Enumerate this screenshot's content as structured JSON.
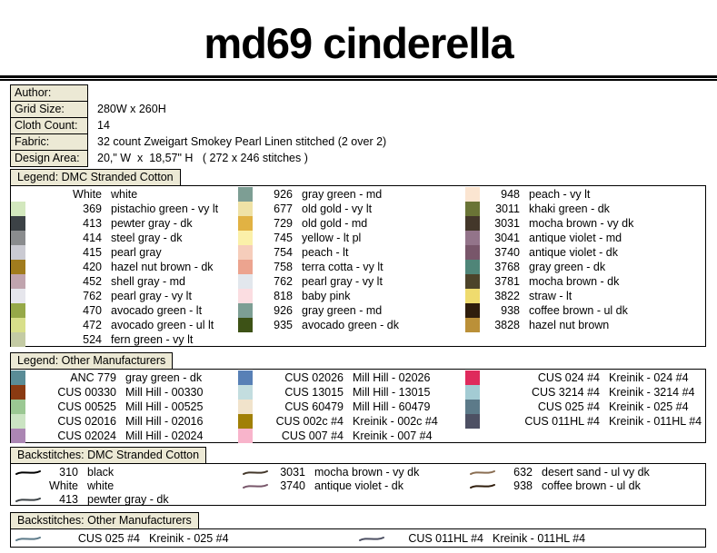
{
  "title": "md69 cinderella",
  "palette": {
    "header_box_bg": "#ECE9D5",
    "border": "#000000",
    "rule": "#000000",
    "page_bg": "#FFFFFF"
  },
  "meta": {
    "rows": [
      {
        "label": "Author:",
        "value": ""
      },
      {
        "label": "Grid Size:",
        "value": "280W x 260H"
      },
      {
        "label": "Cloth Count:",
        "value": "14"
      },
      {
        "label": "Fabric:",
        "value": "32 count Zweigart Smokey Pearl Linen stitched (2 over 2)"
      },
      {
        "label": "Design Area:",
        "value": "20,\" W  x  18,57\" H   ( 272 x 246 stitches )"
      }
    ]
  },
  "sections": [
    {
      "id": "legend_dmc",
      "header": "Legend: DMC Stranded Cotton",
      "type": "swatch",
      "columns": [
        [
          {
            "code": "White",
            "name": "white",
            "color": "#FFFFFF"
          },
          {
            "code": "369",
            "name": "pistachio green - vy lt",
            "color": "#D3E8BE"
          },
          {
            "code": "413",
            "name": "pewter gray - dk",
            "color": "#3C4246"
          },
          {
            "code": "414",
            "name": "steel gray - dk",
            "color": "#8A8C8E"
          },
          {
            "code": "415",
            "name": "pearl gray",
            "color": "#CACAD2"
          },
          {
            "code": "420",
            "name": "hazel nut brown - dk",
            "color": "#A17C1E"
          },
          {
            "code": "452",
            "name": "shell gray - md",
            "color": "#C0A4AE"
          },
          {
            "code": "762",
            "name": "pearl gray - vy lt",
            "color": "#E6E6EC"
          },
          {
            "code": "470",
            "name": "avocado green - lt",
            "color": "#96A948"
          },
          {
            "code": "472",
            "name": "avocado green - ul lt",
            "color": "#D8DF8A"
          },
          {
            "code": "524",
            "name": "fern green - vy lt",
            "color": "#C4CBA4"
          }
        ],
        [
          {
            "code": "926",
            "name": "gray green - md",
            "color": "#7D9E94"
          },
          {
            "code": "677",
            "name": "old gold - vy lt",
            "color": "#EFE2A6"
          },
          {
            "code": "729",
            "name": "old gold - md",
            "color": "#E1B243"
          },
          {
            "code": "745",
            "name": "yellow - lt pl",
            "color": "#FBF0A9"
          },
          {
            "code": "754",
            "name": "peach - lt",
            "color": "#F6CDBB"
          },
          {
            "code": "758",
            "name": "terra cotta - vy lt",
            "color": "#ECA48F"
          },
          {
            "code": "762",
            "name": "pearl gray - vy lt",
            "color": "#E2E7ED"
          },
          {
            "code": "818",
            "name": "baby pink",
            "color": "#FBDDE1"
          },
          {
            "code": "926",
            "name": "gray green - md",
            "color": "#7D9E94"
          },
          {
            "code": "935",
            "name": "avocado green - dk",
            "color": "#3D5216"
          }
        ],
        [
          {
            "code": "948",
            "name": "peach - vy lt",
            "color": "#FBE5D1"
          },
          {
            "code": "3011",
            "name": "khaki green - dk",
            "color": "#6A7436"
          },
          {
            "code": "3031",
            "name": "mocha brown - vy dk",
            "color": "#43372A"
          },
          {
            "code": "3041",
            "name": "antique violet - md",
            "color": "#93748A"
          },
          {
            "code": "3740",
            "name": "antique violet - dk",
            "color": "#78566A"
          },
          {
            "code": "3768",
            "name": "gray green - dk",
            "color": "#4F8578"
          },
          {
            "code": "3781",
            "name": "mocha brown - dk",
            "color": "#4C432A"
          },
          {
            "code": "3822",
            "name": "straw - lt",
            "color": "#EFDB6E"
          },
          {
            "code": "938",
            "name": "coffee brown - ul dk",
            "color": "#2F1D0C"
          },
          {
            "code": "3828",
            "name": "hazel nut brown",
            "color": "#BB9038"
          }
        ]
      ]
    },
    {
      "id": "legend_other",
      "header": "Legend: Other Manufacturers",
      "type": "swatch",
      "columns": [
        [
          {
            "code": "ANC 779",
            "name": "gray green - dk",
            "color": "#5A8C96"
          },
          {
            "code": "CUS 00330",
            "name": "Mill Hill - 00330",
            "color": "#8A3A12"
          },
          {
            "code": "CUS 00525",
            "name": "Mill Hill - 00525",
            "color": "#9BC893"
          },
          {
            "code": "CUS 02016",
            "name": "Mill Hill - 02016",
            "color": "#CBE4C3"
          },
          {
            "code": "CUS 02024",
            "name": "Mill Hill - 02024",
            "color": "#AB86B3"
          }
        ],
        [
          {
            "code": "CUS 02026",
            "name": "Mill Hill - 02026",
            "color": "#5880B6"
          },
          {
            "code": "CUS 13015",
            "name": "Mill Hill - 13015",
            "color": "#C3DDDF"
          },
          {
            "code": "CUS 60479",
            "name": "Mill Hill - 60479",
            "color": "#F1E3CB"
          },
          {
            "code": "CUS 002c #4",
            "name": "Kreinik - 002c #4",
            "color": "#A18006"
          },
          {
            "code": "CUS 007 #4",
            "name": "Kreinik - 007 #4",
            "color": "#F8B4CB"
          }
        ],
        [
          {
            "code": "CUS 024 #4",
            "name": "Kreinik - 024 #4",
            "color": "#DF2A5C"
          },
          {
            "code": "CUS 3214 #4",
            "name": "Kreinik - 3214 #4",
            "color": "#A3CBD3"
          },
          {
            "code": "CUS 025 #4",
            "name": "Kreinik - 025 #4",
            "color": "#5C7A89"
          },
          {
            "code": "CUS 011HL #4",
            "name": "Kreinik - 011HL #4",
            "color": "#4D5063"
          }
        ]
      ]
    },
    {
      "id": "bs_dmc",
      "header": "Backstitches: DMC Stranded Cotton",
      "type": "line",
      "columns": [
        [
          {
            "code": "310",
            "name": "black",
            "color": "#000000"
          },
          {
            "code": "White",
            "name": "white",
            "color": "#FFFFFF"
          },
          {
            "code": "413",
            "name": "pewter gray - dk",
            "color": "#3C4246"
          }
        ],
        [
          {
            "code": "3031",
            "name": "mocha brown - vy dk",
            "color": "#43372A"
          },
          {
            "code": "3740",
            "name": "antique violet - dk",
            "color": "#78566A"
          }
        ],
        [
          {
            "code": "632",
            "name": "desert sand - ul vy dk",
            "color": "#8A6E52"
          },
          {
            "code": "938",
            "name": "coffee brown - ul dk",
            "color": "#2F1D0C"
          }
        ]
      ]
    },
    {
      "id": "bs_other",
      "header": "Backstitches: Other Manufacturers",
      "type": "line",
      "columns": [
        [
          {
            "code": "CUS 025 #4",
            "name": "Kreinik - 025 #4",
            "color": "#5C7A89"
          }
        ],
        [
          {
            "code": "CUS 011HL #4",
            "name": "Kreinik - 011HL #4",
            "color": "#4D5063"
          }
        ]
      ]
    }
  ]
}
